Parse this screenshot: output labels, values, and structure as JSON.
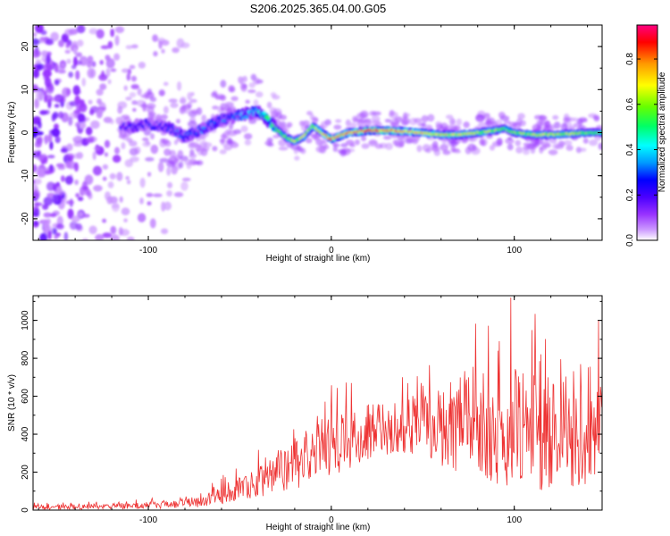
{
  "title": "S206.2025.365.04.00.G05",
  "chart_data": [
    {
      "type": "heatmap",
      "xlabel": "Height of straight line (km)",
      "ylabel": "Frequency (Hz)",
      "xlim": [
        -163,
        148
      ],
      "ylim": [
        -25,
        25
      ],
      "x_ticks": [
        -100,
        0,
        100
      ],
      "y_ticks": [
        -20,
        -10,
        0,
        10,
        20
      ],
      "colorbar": {
        "label": "Normalized spectral amplitude",
        "range": [
          0,
          0.95
        ],
        "ticks": [
          0.0,
          0.2,
          0.4,
          0.6,
          0.8
        ],
        "colors": [
          "#ffffff",
          "#cc99ff",
          "#9933ff",
          "#4b00ff",
          "#0000ff",
          "#0099ff",
          "#00ffff",
          "#00ff66",
          "#66ff00",
          "#ffff00",
          "#ff9900",
          "#ff0000",
          "#ff0080"
        ]
      },
      "ridge": {
        "x": [
          -115,
          -100,
          -90,
          -80,
          -70,
          -60,
          -50,
          -40,
          -35,
          -30,
          -25,
          -20,
          -15,
          -10,
          -5,
          0,
          10,
          20,
          30,
          40,
          50,
          60,
          70,
          80,
          90,
          95,
          100,
          110,
          120,
          130,
          140,
          148
        ],
        "freq": [
          1,
          2,
          1.5,
          -1,
          1,
          3,
          4,
          5,
          3,
          1,
          -1,
          -2,
          -1,
          1.5,
          0,
          -1.5,
          0,
          0.5,
          0.5,
          0.3,
          0,
          -0.5,
          -0.5,
          0,
          0.5,
          1,
          0,
          -0.5,
          -0.5,
          -0.3,
          0,
          0
        ],
        "amplitude": [
          0.25,
          0.3,
          0.3,
          0.35,
          0.35,
          0.35,
          0.4,
          0.45,
          0.55,
          0.6,
          0.65,
          0.7,
          0.7,
          0.75,
          0.8,
          0.9,
          0.85,
          0.9,
          0.9,
          0.85,
          0.8,
          0.75,
          0.75,
          0.7,
          0.7,
          0.6,
          0.65,
          0.7,
          0.7,
          0.7,
          0.65,
          0.6
        ]
      },
      "noise_region_x": [
        -163,
        -65
      ]
    },
    {
      "type": "line",
      "xlabel": "Height of straight line (km)",
      "ylabel": "SNR (10 * v/v)",
      "xlim": [
        -163,
        148
      ],
      "ylim": [
        0,
        1130
      ],
      "x_ticks": [
        -100,
        0,
        100
      ],
      "y_ticks": [
        0,
        200,
        400,
        600,
        800,
        1000
      ],
      "color": "#ee3333",
      "envelope": {
        "x": [
          -163,
          -140,
          -120,
          -100,
          -90,
          -80,
          -70,
          -60,
          -50,
          -40,
          -30,
          -20,
          -10,
          0,
          10,
          20,
          30,
          40,
          50,
          60,
          70,
          80,
          90,
          100,
          110,
          120,
          130,
          140,
          148
        ],
        "mean": [
          15,
          18,
          20,
          25,
          30,
          40,
          55,
          80,
          110,
          150,
          200,
          240,
          290,
          340,
          380,
          410,
          430,
          440,
          450,
          460,
          450,
          440,
          440,
          430,
          420,
          410,
          400,
          390,
          380
        ],
        "spread": [
          12,
          14,
          15,
          18,
          22,
          28,
          38,
          50,
          65,
          85,
          110,
          130,
          150,
          160,
          160,
          150,
          140,
          140,
          180,
          230,
          260,
          280,
          300,
          320,
          320,
          300,
          280,
          260,
          240
        ]
      },
      "spikes": [
        {
          "x": 98,
          "y": 1120
        },
        {
          "x": 91,
          "y": 840
        },
        {
          "x": 146,
          "y": 1000
        },
        {
          "x": 147,
          "y": 650
        }
      ]
    }
  ]
}
